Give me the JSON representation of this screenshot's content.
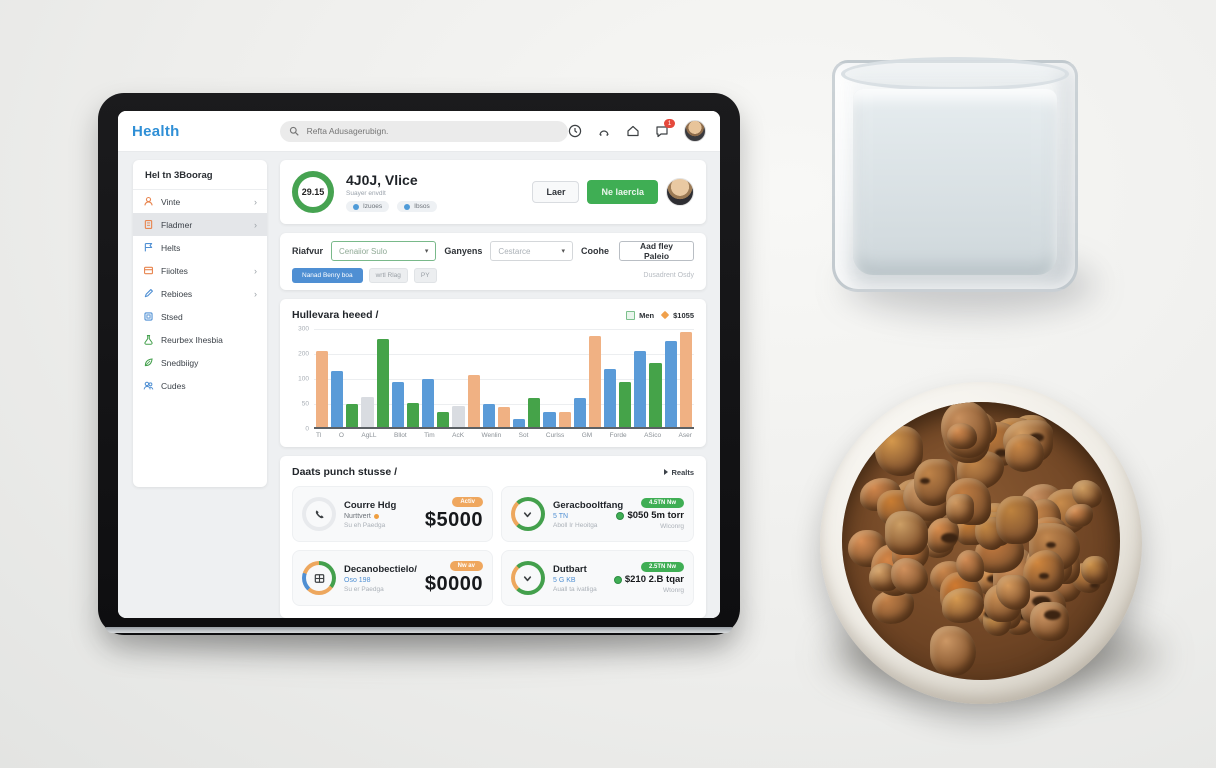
{
  "app": {
    "topbar": {
      "logo": "Health",
      "search_placeholder": "Refta Adusagerubign.",
      "icons": [
        "clock-icon",
        "bell-icon",
        "home-icon",
        "chat-icon"
      ],
      "notification_count": "1"
    },
    "sidebar": {
      "header": "Hel tn 3Boorag",
      "items": [
        {
          "label": "Vinte",
          "icon": "person",
          "color": "#e8854f",
          "chevron": true,
          "active": false
        },
        {
          "label": "Fladmer",
          "icon": "doc",
          "color": "#e8854f",
          "chevron": true,
          "active": true
        },
        {
          "label": "Helts",
          "icon": "flag",
          "color": "#4f8fd3",
          "chevron": false,
          "active": false
        },
        {
          "label": "Fiioltes",
          "icon": "card",
          "color": "#e8854f",
          "chevron": true,
          "active": false
        },
        {
          "label": "Rebioes",
          "icon": "pencil",
          "color": "#4f8fd3",
          "chevron": true,
          "active": false
        },
        {
          "label": "Stsed",
          "icon": "square",
          "color": "#4f8fd3",
          "chevron": false,
          "active": false
        },
        {
          "label": "Reurbex Ihesbia",
          "icon": "beaker",
          "color": "#43a04c",
          "chevron": false,
          "active": false
        },
        {
          "label": "Snedbiigy",
          "icon": "leaf",
          "color": "#43a04c",
          "chevron": false,
          "active": false
        },
        {
          "label": "Cudes",
          "icon": "people",
          "color": "#4f8fd3",
          "chevron": false,
          "active": false
        }
      ]
    },
    "profile": {
      "score": "29.15",
      "title": "4J0J, Vlice",
      "subtitle": "Suayer envdlt",
      "badges": [
        "Izuoes",
        "Ibsos"
      ],
      "secondary_button": "Laer",
      "primary_button": "Ne laercla"
    },
    "filters": {
      "field1_label": "Riafvur",
      "field1_value": "Cenaiior Sulo",
      "field2_label": "Ganyens",
      "field2_value": "Cestarce",
      "field3_label": "Coohe",
      "add_button": "Aad fley Paleio",
      "pill_primary": "Nanad Benry boa",
      "chips": [
        "wrtl Rlag",
        "PY"
      ],
      "note": "Dusadrent Osdy"
    },
    "stats": {
      "title": "Daats punch stusse /",
      "action": "Realts",
      "cards": [
        {
          "icon": "phone",
          "ring": "ring-gray",
          "title": "Courre Hdg",
          "sub1": "Nurttvert",
          "sub1_dot": true,
          "sub1_color": "#6b7178",
          "sub2": "Su eh Paedga",
          "badge": "Activ",
          "badge_color": "badge-orange",
          "big_value": "$5000"
        },
        {
          "icon": "chevron",
          "ring": "ring-go",
          "title": "Geracbooltfang",
          "sub1": "5 TN",
          "sub1_dot": false,
          "sub1_color": "#4f8fd3",
          "sub2": "Aboll Ir Heoitga",
          "badge": "4.5TN Nw",
          "badge_color": "badge-green",
          "value": "$050 5m torr",
          "note": "Wlconrg"
        },
        {
          "icon": "grid",
          "ring": "ring-multi",
          "title": "Decanobectielo/",
          "sub1": "Oso 198",
          "sub1_dot": false,
          "sub1_color": "#4f8fd3",
          "sub2": "Su er Paedga",
          "badge": "Nw av",
          "badge_color": "badge-orange",
          "big_value": "$0000"
        },
        {
          "icon": "chevron",
          "ring": "ring-go",
          "title": "Dutbart",
          "sub1": "5 G KB",
          "sub1_dot": false,
          "sub1_color": "#4f8fd3",
          "sub2": "Auall ta ivatliga",
          "badge": "2.5TN Nw",
          "badge_color": "badge-green",
          "value": "$210 2.B tqar",
          "note": "Wtonrg"
        }
      ]
    }
  },
  "chart_data": {
    "type": "bar",
    "title": "Hullevara heeed /",
    "legend": {
      "label": "Men",
      "value": "$1055",
      "position": "top-right"
    },
    "xlabel": "",
    "ylabel": "",
    "ylim": [
      0,
      330
    ],
    "yticks": [
      "300",
      "200",
      "100",
      "50",
      "0"
    ],
    "grid": true,
    "categories": [
      "Tl",
      "O",
      "AgLL",
      "Bllot",
      "Tim",
      "AcK",
      "Wenlin",
      "Sot",
      "Curlss",
      "GM",
      "Forde",
      "ASico",
      "Aser"
    ],
    "palette": {
      "orange": "#f0b183",
      "blue": "#5a9bd8",
      "green": "#45a349",
      "gray": "#d9dce1"
    },
    "bars": [
      {
        "v": 250,
        "c": "orange"
      },
      {
        "v": 185,
        "c": "blue"
      },
      {
        "v": 75,
        "c": "green"
      },
      {
        "v": 100,
        "c": "gray"
      },
      {
        "v": 290,
        "c": "green"
      },
      {
        "v": 150,
        "c": "blue"
      },
      {
        "v": 80,
        "c": "green"
      },
      {
        "v": 160,
        "c": "blue"
      },
      {
        "v": 50,
        "c": "green"
      },
      {
        "v": 70,
        "c": "gray"
      },
      {
        "v": 170,
        "c": "orange"
      },
      {
        "v": 75,
        "c": "blue"
      },
      {
        "v": 65,
        "c": "orange"
      },
      {
        "v": 25,
        "c": "blue"
      },
      {
        "v": 95,
        "c": "green"
      },
      {
        "v": 50,
        "c": "blue"
      },
      {
        "v": 50,
        "c": "orange"
      },
      {
        "v": 95,
        "c": "blue"
      },
      {
        "v": 300,
        "c": "orange"
      },
      {
        "v": 190,
        "c": "blue"
      },
      {
        "v": 150,
        "c": "green"
      },
      {
        "v": 250,
        "c": "blue"
      },
      {
        "v": 210,
        "c": "green"
      },
      {
        "v": 285,
        "c": "blue"
      },
      {
        "v": 315,
        "c": "orange"
      }
    ]
  }
}
